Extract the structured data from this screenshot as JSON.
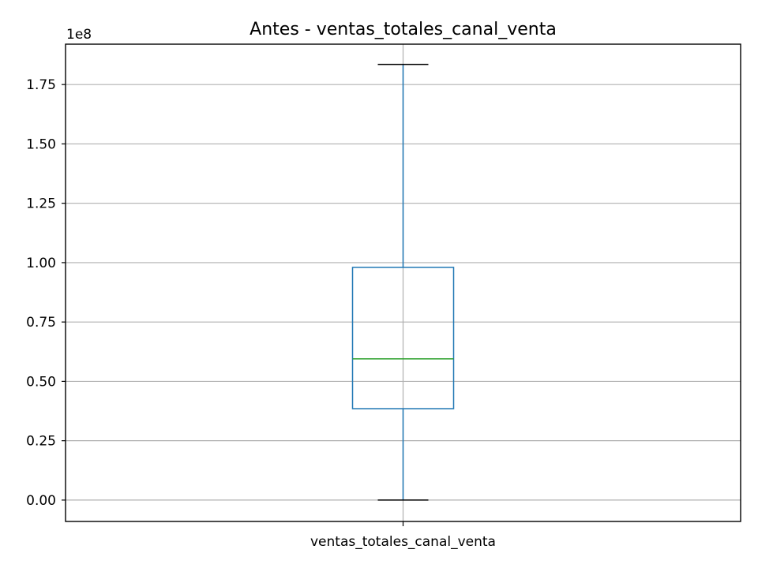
{
  "chart_data": {
    "type": "box",
    "title": "Antes - ventas_totales_canal_venta",
    "categories": [
      "ventas_totales_canal_venta"
    ],
    "y_offset_label": "1e8",
    "ylim": [
      -0.09,
      1.92
    ],
    "yticks": [
      0.0,
      0.25,
      0.5,
      0.75,
      1.0,
      1.25,
      1.5,
      1.75
    ],
    "ytick_labels": [
      "0.00",
      "0.25",
      "0.50",
      "0.75",
      "1.00",
      "1.25",
      "1.50",
      "1.75"
    ],
    "grid": true,
    "box": {
      "whisker_low": 0.0,
      "q1": 0.385,
      "median": 0.595,
      "q3": 0.98,
      "whisker_high": 1.835
    },
    "colors": {
      "box": "#1f77b4",
      "median": "#2ca02c",
      "caps": "#000000"
    }
  }
}
